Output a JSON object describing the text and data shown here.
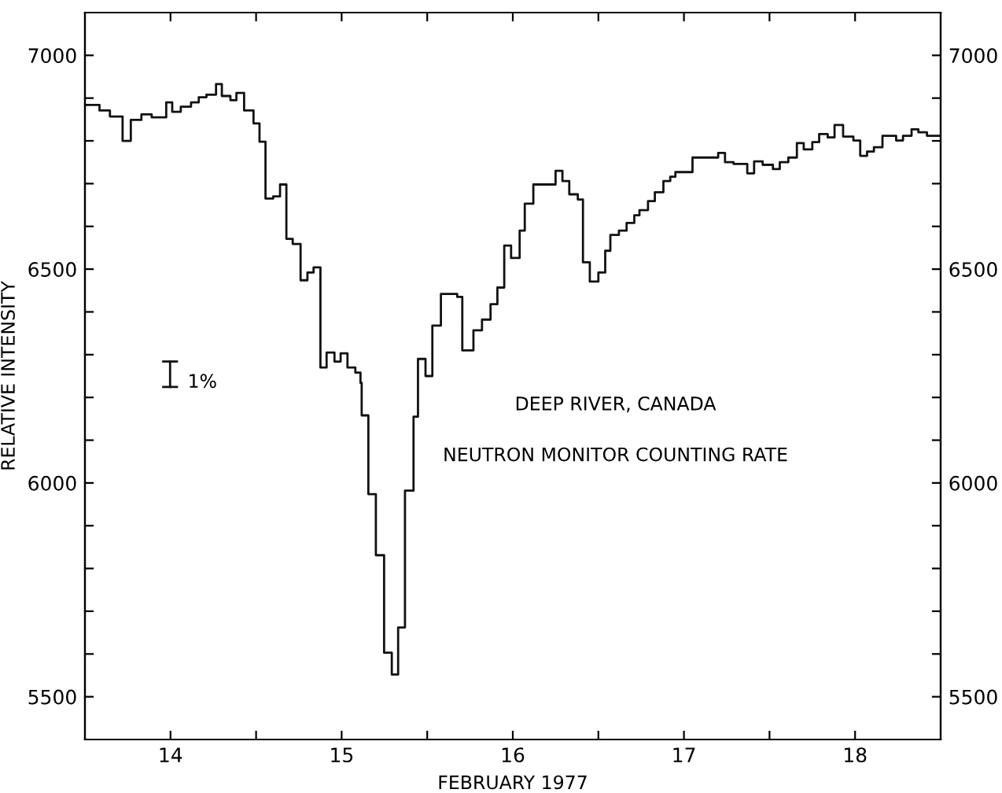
{
  "chart_data": {
    "type": "step",
    "xlabel": "FEBRUARY 1977",
    "ylabel": "RELATIVE INTENSITY",
    "annotations": [
      "DEEP RIVER, CANADA",
      "NEUTRON MONITOR COUNTING RATE",
      "1%"
    ],
    "series": [
      {
        "color": "#111111",
        "x": [
          13.5,
          13.585,
          13.646,
          13.72,
          13.768,
          13.83,
          13.89,
          13.975,
          14.01,
          14.06,
          14.12,
          14.165,
          14.21,
          14.266,
          14.3,
          14.35,
          14.385,
          14.43,
          14.485,
          14.52,
          14.555,
          14.6,
          14.64,
          14.677,
          14.714,
          14.76,
          14.8,
          14.836,
          14.876,
          14.912,
          14.958,
          14.994,
          15.034,
          15.08,
          15.11,
          15.117,
          15.156,
          15.2,
          15.248,
          15.293,
          15.33,
          15.37,
          15.42,
          15.446,
          15.49,
          15.53,
          15.58,
          15.675,
          15.705,
          15.77,
          15.82,
          15.87,
          15.91,
          15.95,
          15.99,
          16.04,
          16.07,
          16.12,
          16.25,
          16.29,
          16.33,
          16.38,
          16.41,
          16.45,
          16.5,
          16.54,
          16.57,
          16.62,
          16.665,
          16.71,
          16.74,
          16.79,
          16.83,
          16.88,
          16.92,
          16.95,
          17.05,
          17.2,
          17.24,
          17.29,
          17.37,
          17.41,
          17.46,
          17.52,
          17.56,
          17.61,
          17.66,
          17.7,
          17.75,
          17.79,
          17.84,
          17.88,
          17.93,
          17.99,
          18.03,
          18.07,
          18.11,
          18.16,
          18.24,
          18.28,
          18.33,
          18.37,
          18.42,
          18.5
        ],
        "values": [
          6884,
          6871,
          6857,
          6800,
          6849,
          6862,
          6855,
          6890,
          6868,
          6880,
          6890,
          6902,
          6908,
          6933,
          6905,
          6895,
          6912,
          6871,
          6841,
          6798,
          6665,
          6670,
          6698,
          6571,
          6559,
          6474,
          6492,
          6504,
          6270,
          6305,
          6284,
          6303,
          6270,
          6258,
          6234,
          6158,
          5974,
          5831,
          5603,
          5552,
          5662,
          5982,
          6155,
          6290,
          6250,
          6368,
          6442,
          6435,
          6310,
          6357,
          6382,
          6418,
          6457,
          6555,
          6526,
          6590,
          6653,
          6698,
          6730,
          6706,
          6675,
          6663,
          6516,
          6471,
          6492,
          6543,
          6580,
          6590,
          6608,
          6626,
          6638,
          6659,
          6680,
          6706,
          6716,
          6727,
          6761,
          6772,
          6750,
          6746,
          6724,
          6752,
          6744,
          6734,
          6750,
          6761,
          6795,
          6780,
          6797,
          6816,
          6808,
          6837,
          6810,
          6801,
          6765,
          6775,
          6785,
          6812,
          6801,
          6812,
          6827,
          6820,
          6812,
          6812
        ]
      }
    ],
    "xlim": [
      13.5,
      18.5
    ],
    "xticks": [
      14,
      {
        "value": 14.5,
        "label": null
      },
      15,
      {
        "value": 15.5,
        "label": null
      },
      16,
      {
        "value": 16.5,
        "label": null
      },
      17,
      {
        "value": 17.5,
        "label": null
      },
      18
    ],
    "ylim": [
      5400,
      7100
    ],
    "yticks": [
      5500,
      {
        "value": 5600,
        "label": null
      },
      {
        "value": 5700,
        "label": null
      },
      {
        "value": 5800,
        "label": null
      },
      {
        "value": 5900,
        "label": null
      },
      6000,
      {
        "value": 6100,
        "label": null
      },
      {
        "value": 6200,
        "label": null
      },
      {
        "value": 6300,
        "label": null
      },
      {
        "value": 6400,
        "label": null
      },
      6500,
      {
        "value": 6600,
        "label": null
      },
      {
        "value": 6700,
        "label": null
      },
      {
        "value": 6800,
        "label": null
      },
      {
        "value": 6900,
        "label": null
      },
      7000
    ],
    "y2lim": [
      5400,
      7100
    ],
    "y2ticks": [
      5500,
      {
        "value": 5600,
        "label": null
      },
      {
        "value": 5700,
        "label": null
      },
      {
        "value": 5800,
        "label": null
      },
      {
        "value": 5900,
        "label": null
      },
      6000,
      {
        "value": 6100,
        "label": null
      },
      {
        "value": 6200,
        "label": null
      },
      {
        "value": 6300,
        "label": null
      },
      {
        "value": 6400,
        "label": null
      },
      6500,
      {
        "value": 6600,
        "label": null
      },
      {
        "value": 6700,
        "label": null
      },
      {
        "value": 6800,
        "label": null
      },
      {
        "value": 6900,
        "label": null
      },
      7000
    ],
    "grid": false,
    "legend": false,
    "line_style": "solid",
    "marker": "none"
  }
}
